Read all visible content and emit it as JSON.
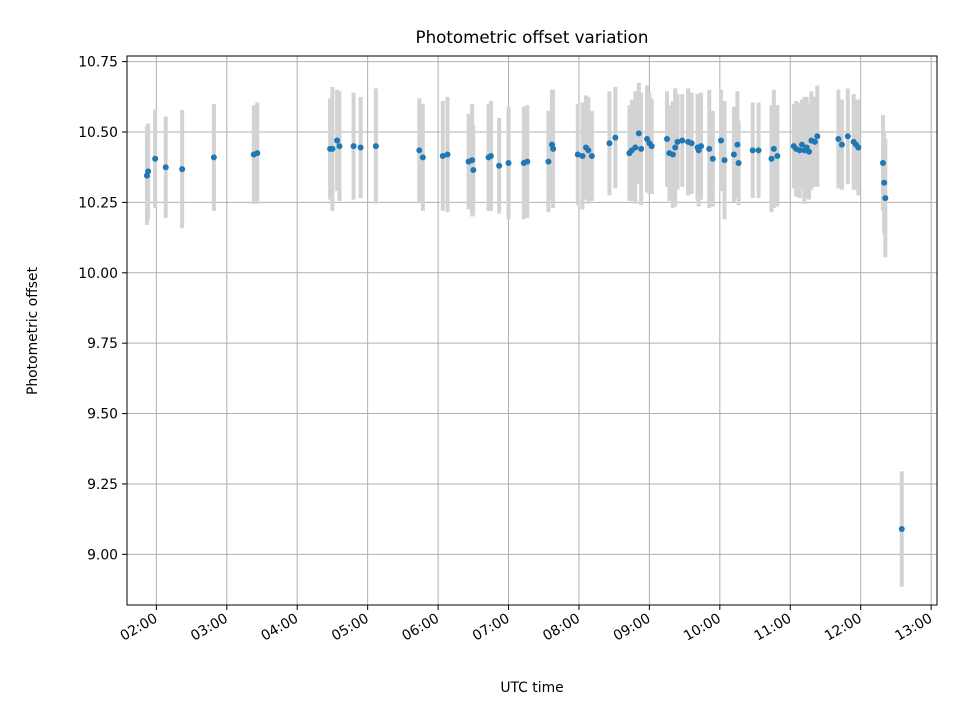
{
  "chart_data": {
    "type": "scatter",
    "title": "Photometric offset variation",
    "xlabel": "UTC time",
    "ylabel": "Photometric offset",
    "xlim": [
      "01:35",
      "13:05"
    ],
    "ylim": [
      8.82,
      10.77
    ],
    "x_ticks": [
      "02:00",
      "03:00",
      "04:00",
      "05:00",
      "06:00",
      "07:00",
      "08:00",
      "09:00",
      "10:00",
      "11:00",
      "12:00",
      "13:00"
    ],
    "y_ticks": [
      "9.00",
      "9.25",
      "9.50",
      "9.75",
      "10.00",
      "10.25",
      "10.50",
      "10.75"
    ],
    "grid": true,
    "colors": {
      "points": "#1f77b4",
      "errorbars": "#d3d3d3",
      "grid": "#b0b0b0"
    },
    "series": [
      {
        "points": [
          {
            "x": "01:52",
            "y": 10.345,
            "err": 0.175
          },
          {
            "x": "01:53",
            "y": 10.36,
            "err": 0.17
          },
          {
            "x": "01:59",
            "y": 10.405,
            "err": 0.175
          },
          {
            "x": "02:08",
            "y": 10.375,
            "err": 0.18
          },
          {
            "x": "02:22",
            "y": 10.368,
            "err": 0.21
          },
          {
            "x": "02:49",
            "y": 10.41,
            "err": 0.19
          },
          {
            "x": "03:23",
            "y": 10.42,
            "err": 0.175
          },
          {
            "x": "03:26",
            "y": 10.425,
            "err": 0.18
          },
          {
            "x": "04:28",
            "y": 10.44,
            "err": 0.18
          },
          {
            "x": "04:30",
            "y": 10.44,
            "err": 0.22
          },
          {
            "x": "04:34",
            "y": 10.47,
            "err": 0.18
          },
          {
            "x": "04:36",
            "y": 10.45,
            "err": 0.195
          },
          {
            "x": "04:48",
            "y": 10.45,
            "err": 0.19
          },
          {
            "x": "04:54",
            "y": 10.445,
            "err": 0.18
          },
          {
            "x": "05:07",
            "y": 10.45,
            "err": 0.205
          },
          {
            "x": "05:44",
            "y": 10.435,
            "err": 0.185
          },
          {
            "x": "05:47",
            "y": 10.41,
            "err": 0.19
          },
          {
            "x": "06:04",
            "y": 10.415,
            "err": 0.195
          },
          {
            "x": "06:08",
            "y": 10.42,
            "err": 0.205
          },
          {
            "x": "06:26",
            "y": 10.395,
            "err": 0.17
          },
          {
            "x": "06:29",
            "y": 10.4,
            "err": 0.2
          },
          {
            "x": "06:30",
            "y": 10.365,
            "err": 0.16
          },
          {
            "x": "06:43",
            "y": 10.41,
            "err": 0.19
          },
          {
            "x": "06:45",
            "y": 10.415,
            "err": 0.195
          },
          {
            "x": "06:52",
            "y": 10.38,
            "err": 0.17
          },
          {
            "x": "07:00",
            "y": 10.39,
            "err": 0.2
          },
          {
            "x": "07:13",
            "y": 10.39,
            "err": 0.2
          },
          {
            "x": "07:16",
            "y": 10.395,
            "err": 0.2
          },
          {
            "x": "07:34",
            "y": 10.395,
            "err": 0.18
          },
          {
            "x": "07:37",
            "y": 10.455,
            "err": 0.195
          },
          {
            "x": "07:38",
            "y": 10.44,
            "err": 0.21
          },
          {
            "x": "07:59",
            "y": 10.42,
            "err": 0.18
          },
          {
            "x": "08:03",
            "y": 10.415,
            "err": 0.19
          },
          {
            "x": "08:06",
            "y": 10.445,
            "err": 0.185
          },
          {
            "x": "08:08",
            "y": 10.435,
            "err": 0.19
          },
          {
            "x": "08:11",
            "y": 10.415,
            "err": 0.16
          },
          {
            "x": "08:26",
            "y": 10.46,
            "err": 0.185
          },
          {
            "x": "08:31",
            "y": 10.48,
            "err": 0.18
          },
          {
            "x": "08:43",
            "y": 10.425,
            "err": 0.17
          },
          {
            "x": "08:45",
            "y": 10.435,
            "err": 0.18
          },
          {
            "x": "08:48",
            "y": 10.445,
            "err": 0.2
          },
          {
            "x": "08:51",
            "y": 10.495,
            "err": 0.18
          },
          {
            "x": "08:53",
            "y": 10.44,
            "err": 0.2
          },
          {
            "x": "08:58",
            "y": 10.475,
            "err": 0.19
          },
          {
            "x": "09:00",
            "y": 10.46,
            "err": 0.18
          },
          {
            "x": "09:02",
            "y": 10.45,
            "err": 0.17
          },
          {
            "x": "09:15",
            "y": 10.475,
            "err": 0.17
          },
          {
            "x": "09:17",
            "y": 10.425,
            "err": 0.17
          },
          {
            "x": "09:20",
            "y": 10.42,
            "err": 0.19
          },
          {
            "x": "09:22",
            "y": 10.445,
            "err": 0.21
          },
          {
            "x": "09:24",
            "y": 10.465,
            "err": 0.17
          },
          {
            "x": "09:28",
            "y": 10.47,
            "err": 0.165
          },
          {
            "x": "09:33",
            "y": 10.465,
            "err": 0.19
          },
          {
            "x": "09:36",
            "y": 10.46,
            "err": 0.18
          },
          {
            "x": "09:41",
            "y": 10.445,
            "err": 0.19
          },
          {
            "x": "09:42",
            "y": 10.435,
            "err": 0.2
          },
          {
            "x": "09:44",
            "y": 10.45,
            "err": 0.19
          },
          {
            "x": "09:51",
            "y": 10.44,
            "err": 0.21
          },
          {
            "x": "09:54",
            "y": 10.405,
            "err": 0.17
          },
          {
            "x": "10:01",
            "y": 10.47,
            "err": 0.18
          },
          {
            "x": "10:04",
            "y": 10.4,
            "err": 0.21
          },
          {
            "x": "10:12",
            "y": 10.42,
            "err": 0.17
          },
          {
            "x": "10:15",
            "y": 10.455,
            "err": 0.19
          },
          {
            "x": "10:16",
            "y": 10.39,
            "err": 0.15
          },
          {
            "x": "10:28",
            "y": 10.435,
            "err": 0.17
          },
          {
            "x": "10:33",
            "y": 10.435,
            "err": 0.17
          },
          {
            "x": "10:44",
            "y": 10.405,
            "err": 0.19
          },
          {
            "x": "10:46",
            "y": 10.44,
            "err": 0.21
          },
          {
            "x": "10:49",
            "y": 10.415,
            "err": 0.18
          },
          {
            "x": "11:03",
            "y": 10.45,
            "err": 0.15
          },
          {
            "x": "11:05",
            "y": 10.44,
            "err": 0.17
          },
          {
            "x": "11:08",
            "y": 10.435,
            "err": 0.17
          },
          {
            "x": "11:10",
            "y": 10.455,
            "err": 0.16
          },
          {
            "x": "11:12",
            "y": 10.435,
            "err": 0.19
          },
          {
            "x": "11:14",
            "y": 10.445,
            "err": 0.18
          },
          {
            "x": "11:16",
            "y": 10.43,
            "err": 0.17
          },
          {
            "x": "11:18",
            "y": 10.47,
            "err": 0.175
          },
          {
            "x": "11:21",
            "y": 10.465,
            "err": 0.16
          },
          {
            "x": "11:23",
            "y": 10.485,
            "err": 0.18
          },
          {
            "x": "11:41",
            "y": 10.475,
            "err": 0.175
          },
          {
            "x": "11:44",
            "y": 10.455,
            "err": 0.16
          },
          {
            "x": "11:49",
            "y": 10.485,
            "err": 0.17
          },
          {
            "x": "11:54",
            "y": 10.465,
            "err": 0.17
          },
          {
            "x": "11:56",
            "y": 10.455,
            "err": 0.16
          },
          {
            "x": "11:58",
            "y": 10.445,
            "err": 0.17
          },
          {
            "x": "12:19",
            "y": 10.39,
            "err": 0.17
          },
          {
            "x": "12:20",
            "y": 10.32,
            "err": 0.18
          },
          {
            "x": "12:21",
            "y": 10.265,
            "err": 0.21
          },
          {
            "x": "12:35",
            "y": 9.09,
            "err": 0.205
          }
        ]
      }
    ]
  }
}
